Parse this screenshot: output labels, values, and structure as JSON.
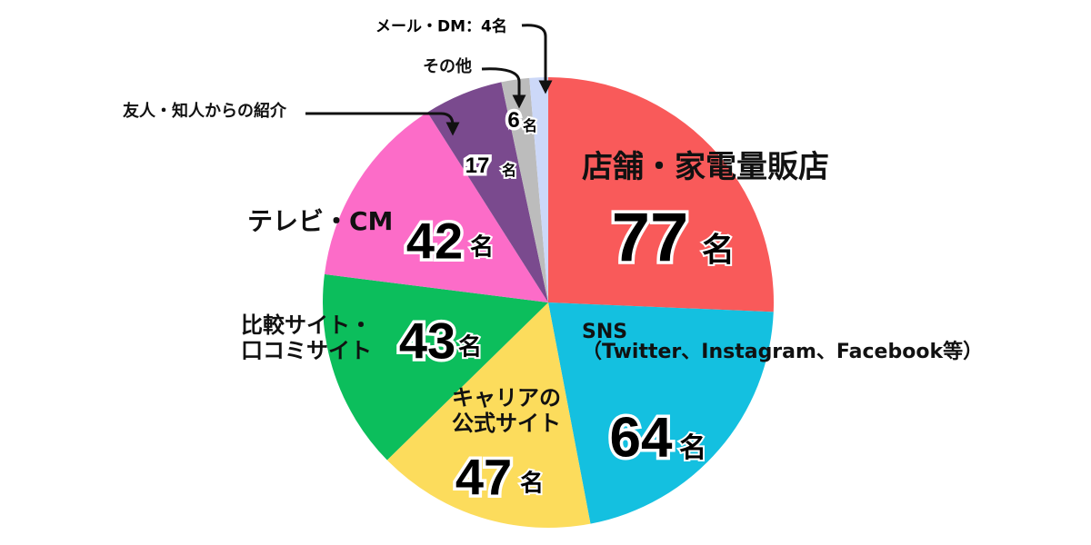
{
  "chart_data": {
    "type": "pie",
    "categories": [
      "店舗・家電量販店",
      "SNS\n（Twitter、Instagram、Facebook等）",
      "キャリアの\n公式サイト",
      "比較サイト・\n口コミサイト",
      "テレビ・CM",
      "友人・知人からの紹介",
      "その他",
      "メール・DM"
    ],
    "values": [
      77,
      64,
      47,
      43,
      42,
      17,
      6,
      4
    ],
    "unit": "名",
    "label_separator": "：",
    "colors": [
      "#f95a5a",
      "#14c0e0",
      "#fcdc5c",
      "#0cbe5c",
      "#fc6cc8",
      "#7a4a8e",
      "#bcbcbc",
      "#ccd8f8"
    ]
  }
}
